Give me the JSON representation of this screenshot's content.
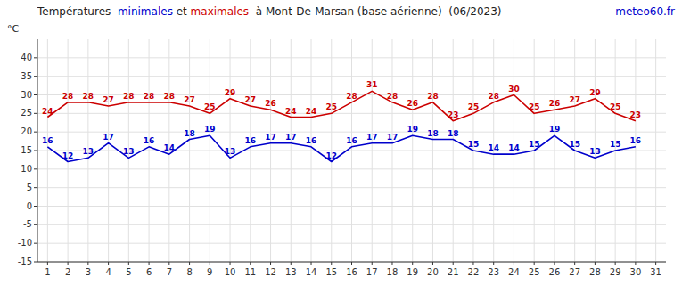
{
  "chart_data": {
    "type": "line",
    "title": [
      "Températures  ",
      "minimales",
      " et ",
      "maximales",
      "  à Mont-De-Marsan (base aérienne)  (06/2023)"
    ],
    "annotations": [
      {
        "text": "meteo60.fr",
        "color": "#0000cc"
      }
    ],
    "y_label": "°C",
    "x": [
      1,
      2,
      3,
      4,
      5,
      6,
      7,
      8,
      9,
      10,
      11,
      12,
      13,
      14,
      15,
      16,
      17,
      18,
      19,
      20,
      21,
      22,
      23,
      24,
      25,
      26,
      27,
      28,
      29,
      30,
      31
    ],
    "series": [
      {
        "name": "minimales",
        "color": "#0000cc",
        "values": [
          16,
          12,
          13,
          17,
          13,
          16,
          14,
          18,
          19,
          13,
          16,
          17,
          17,
          16,
          12,
          16,
          17,
          17,
          19,
          18,
          18,
          15,
          14,
          14,
          15,
          19,
          15,
          13,
          15,
          16,
          null
        ]
      },
      {
        "name": "maximales",
        "color": "#cc0000",
        "values": [
          24,
          28,
          28,
          27,
          28,
          28,
          28,
          27,
          25,
          29,
          27,
          26,
          24,
          24,
          25,
          28,
          31,
          28,
          26,
          28,
          23,
          25,
          28,
          30,
          25,
          26,
          27,
          29,
          25,
          23,
          null
        ]
      }
    ],
    "xlim": [
      0.5,
      31.5
    ],
    "xticks": [
      1,
      2,
      3,
      4,
      5,
      6,
      7,
      8,
      9,
      10,
      11,
      12,
      13,
      14,
      15,
      16,
      17,
      18,
      19,
      20,
      21,
      22,
      23,
      24,
      25,
      26,
      27,
      28,
      29,
      30,
      31
    ],
    "ylim": [
      -15,
      45
    ],
    "yticks": [
      -15,
      -10,
      -5,
      0,
      5,
      10,
      15,
      20,
      25,
      30,
      35,
      40
    ],
    "grid": true,
    "data_labels": true
  }
}
